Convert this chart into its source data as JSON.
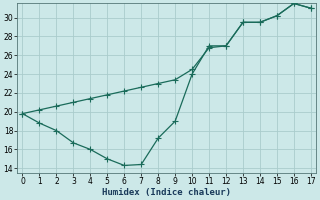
{
  "xlabel": "Humidex (Indice chaleur)",
  "bg_color": "#cce8e8",
  "grid_color": "#aacccc",
  "line_color": "#1a6b5a",
  "line1_x": [
    0,
    1,
    2,
    3,
    4,
    5,
    6,
    7,
    8,
    9,
    10,
    11,
    12,
    13,
    14,
    15,
    16,
    17
  ],
  "line1_y": [
    19.8,
    18.8,
    18.0,
    16.7,
    16.0,
    15.0,
    14.3,
    14.4,
    17.2,
    19.0,
    24.0,
    27.0,
    27.0,
    29.5,
    29.5,
    30.2,
    31.5,
    31.0
  ],
  "line2_x": [
    0,
    1,
    2,
    3,
    4,
    5,
    6,
    7,
    8,
    9,
    10,
    11,
    12,
    13,
    14,
    15,
    16,
    17
  ],
  "line2_y": [
    19.8,
    20.2,
    20.6,
    21.0,
    21.4,
    21.8,
    22.2,
    22.6,
    23.0,
    23.4,
    24.5,
    26.8,
    27.0,
    29.5,
    29.5,
    30.2,
    31.5,
    31.0
  ],
  "xlim": [
    -0.3,
    17.3
  ],
  "ylim": [
    13.5,
    31.5
  ],
  "yticks": [
    14,
    16,
    18,
    20,
    22,
    24,
    26,
    28,
    30
  ],
  "xticks": [
    0,
    1,
    2,
    3,
    4,
    5,
    6,
    7,
    8,
    9,
    10,
    11,
    12,
    13,
    14,
    15,
    16,
    17
  ]
}
